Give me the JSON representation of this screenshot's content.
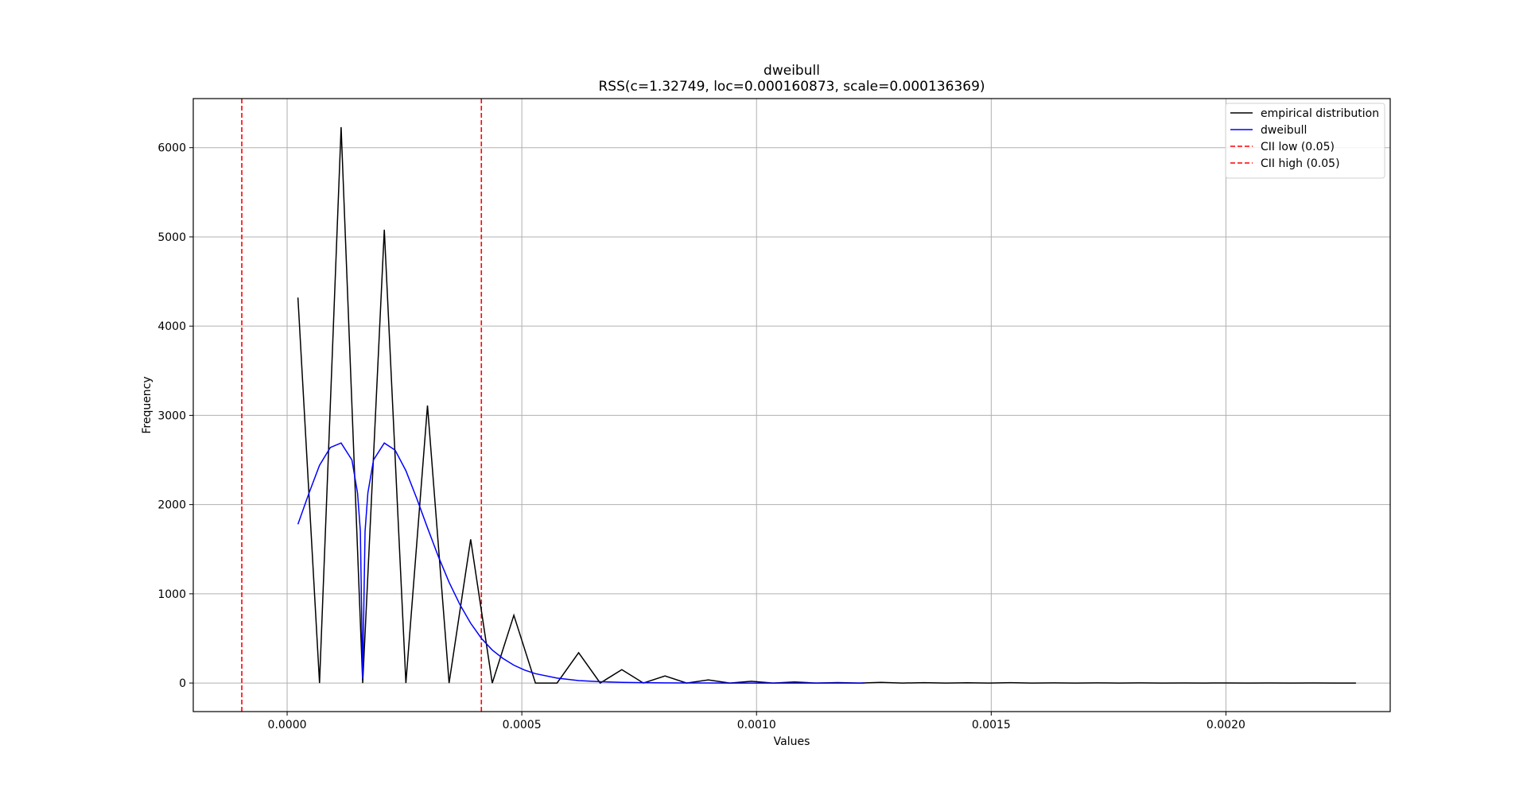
{
  "chart_data": {
    "type": "line",
    "title": "dweibull",
    "subtitle": "RSS(c=1.32749, loc=0.000160873, scale=0.000136369)",
    "xlabel": "Values",
    "ylabel": "Frequency",
    "xlim": [
      -0.0002,
      0.00235
    ],
    "ylim": [
      -320,
      6550
    ],
    "xticks": [
      0.0,
      0.0005,
      0.001,
      0.0015,
      0.002
    ],
    "xtick_labels": [
      "0.0000",
      "0.0005",
      "0.0010",
      "0.0015",
      "0.0020"
    ],
    "yticks": [
      0,
      1000,
      2000,
      3000,
      4000,
      5000,
      6000
    ],
    "ytick_labels": [
      "0",
      "1000",
      "2000",
      "3000",
      "4000",
      "5000",
      "6000"
    ],
    "grid": true,
    "legend_position": "top-right",
    "series": [
      {
        "name": "empirical distribution",
        "color": "#000000",
        "style": "solid",
        "x": [
          2.3e-05,
          6.9e-05,
          0.000115,
          0.000161,
          0.000207,
          0.000253,
          0.000299,
          0.000345,
          0.000391,
          0.000437,
          0.000483,
          0.000529,
          0.000575,
          0.000621,
          0.000667,
          0.000713,
          0.000759,
          0.000805,
          0.000851,
          0.000897,
          0.000943,
          0.000989,
          0.001035,
          0.001081,
          0.001127,
          0.001173,
          0.001219,
          0.001265,
          0.001311,
          0.001357,
          0.001403,
          0.001449,
          0.001495,
          0.001541,
          0.001587,
          0.001633,
          0.001679,
          0.001725,
          0.001771,
          0.001817,
          0.001863,
          0.001909,
          0.001955,
          0.002001,
          0.002047,
          0.002093,
          0.002139,
          0.002185,
          0.002231,
          0.002277
        ],
        "y": [
          4320,
          0,
          6230,
          0,
          5080,
          0,
          3110,
          0,
          1610,
          0,
          760,
          0,
          0,
          340,
          0,
          150,
          0,
          80,
          0,
          35,
          0,
          20,
          0,
          12,
          0,
          5,
          0,
          8,
          0,
          4,
          0,
          3,
          0,
          4,
          0,
          2,
          0,
          2,
          0,
          2,
          0,
          1,
          0,
          1,
          0,
          1,
          0,
          1,
          0,
          0
        ]
      },
      {
        "name": "dweibull",
        "color": "#0000ff",
        "style": "solid",
        "x": [
          2.3e-05,
          4.6e-05,
          6.9e-05,
          9.2e-05,
          0.000115,
          0.000138,
          0.00015,
          0.000156,
          0.0001609,
          0.000166,
          0.000172,
          0.000184,
          0.000207,
          0.00023,
          0.000253,
          0.000276,
          0.000299,
          0.000322,
          0.000345,
          0.000368,
          0.000391,
          0.000414,
          0.000437,
          0.00046,
          0.000483,
          0.000506,
          0.000529,
          0.000575,
          0.000621,
          0.000667,
          0.000713,
          0.000759,
          0.000805,
          0.000851,
          0.000897,
          0.000943,
          0.000989,
          0.001035,
          0.001081,
          0.001127,
          0.001173,
          0.001219,
          0.00123
        ],
        "y": [
          1780,
          2120,
          2440,
          2640,
          2690,
          2500,
          2130,
          1700,
          50,
          1700,
          2130,
          2500,
          2690,
          2610,
          2380,
          2070,
          1740,
          1420,
          1130,
          880,
          670,
          500,
          370,
          275,
          200,
          145,
          105,
          55,
          28,
          15,
          8,
          4,
          2,
          1,
          1,
          0,
          0,
          0,
          0,
          0,
          0,
          0,
          0
        ]
      }
    ],
    "vlines": [
      {
        "name": "CII low (0.05)",
        "x": -9.66e-05,
        "color": "#ff0000",
        "style": "dashed"
      },
      {
        "name": "CII high (0.05)",
        "x": 0.0004138,
        "color": "#ff0000",
        "style": "dashed"
      }
    ]
  }
}
